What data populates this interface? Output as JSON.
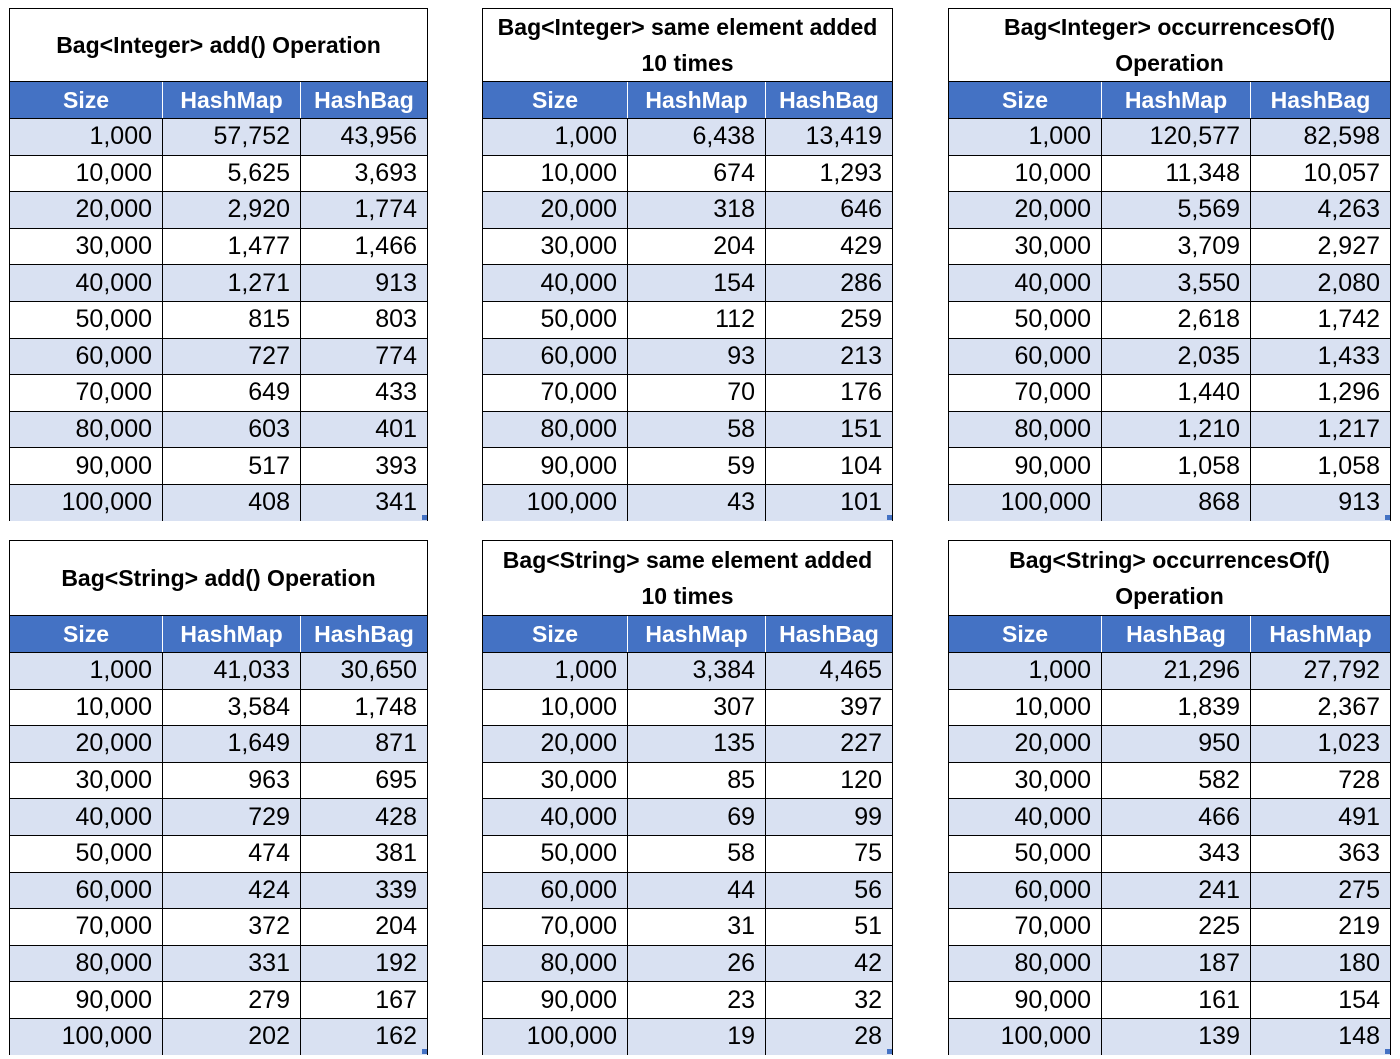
{
  "chart_data": [
    {
      "type": "table",
      "title": "Bag<Integer> add() Operation",
      "columns": [
        "Size",
        "HashMap",
        "HashBag"
      ],
      "rows": [
        [
          "1,000",
          "57,752",
          "43,956"
        ],
        [
          "10,000",
          "5,625",
          "3,693"
        ],
        [
          "20,000",
          "2,920",
          "1,774"
        ],
        [
          "30,000",
          "1,477",
          "1,466"
        ],
        [
          "40,000",
          "1,271",
          "913"
        ],
        [
          "50,000",
          "815",
          "803"
        ],
        [
          "60,000",
          "727",
          "774"
        ],
        [
          "70,000",
          "649",
          "433"
        ],
        [
          "80,000",
          "603",
          "401"
        ],
        [
          "90,000",
          "517",
          "393"
        ],
        [
          "100,000",
          "408",
          "341"
        ]
      ]
    },
    {
      "type": "table",
      "title": "Bag<Integer> same element added 10 times",
      "columns": [
        "Size",
        "HashMap",
        "HashBag"
      ],
      "rows": [
        [
          "1,000",
          "6,438",
          "13,419"
        ],
        [
          "10,000",
          "674",
          "1,293"
        ],
        [
          "20,000",
          "318",
          "646"
        ],
        [
          "30,000",
          "204",
          "429"
        ],
        [
          "40,000",
          "154",
          "286"
        ],
        [
          "50,000",
          "112",
          "259"
        ],
        [
          "60,000",
          "93",
          "213"
        ],
        [
          "70,000",
          "70",
          "176"
        ],
        [
          "80,000",
          "58",
          "151"
        ],
        [
          "90,000",
          "59",
          "104"
        ],
        [
          "100,000",
          "43",
          "101"
        ]
      ]
    },
    {
      "type": "table",
      "title": "Bag<Integer> occurrencesOf() Operation",
      "columns": [
        "Size",
        "HashMap",
        "HashBag"
      ],
      "rows": [
        [
          "1,000",
          "120,577",
          "82,598"
        ],
        [
          "10,000",
          "11,348",
          "10,057"
        ],
        [
          "20,000",
          "5,569",
          "4,263"
        ],
        [
          "30,000",
          "3,709",
          "2,927"
        ],
        [
          "40,000",
          "3,550",
          "2,080"
        ],
        [
          "50,000",
          "2,618",
          "1,742"
        ],
        [
          "60,000",
          "2,035",
          "1,433"
        ],
        [
          "70,000",
          "1,440",
          "1,296"
        ],
        [
          "80,000",
          "1,210",
          "1,217"
        ],
        [
          "90,000",
          "1,058",
          "1,058"
        ],
        [
          "100,000",
          "868",
          "913"
        ]
      ]
    },
    {
      "type": "table",
      "title": "Bag<String> add() Operation",
      "columns": [
        "Size",
        "HashMap",
        "HashBag"
      ],
      "rows": [
        [
          "1,000",
          "41,033",
          "30,650"
        ],
        [
          "10,000",
          "3,584",
          "1,748"
        ],
        [
          "20,000",
          "1,649",
          "871"
        ],
        [
          "30,000",
          "963",
          "695"
        ],
        [
          "40,000",
          "729",
          "428"
        ],
        [
          "50,000",
          "474",
          "381"
        ],
        [
          "60,000",
          "424",
          "339"
        ],
        [
          "70,000",
          "372",
          "204"
        ],
        [
          "80,000",
          "331",
          "192"
        ],
        [
          "90,000",
          "279",
          "167"
        ],
        [
          "100,000",
          "202",
          "162"
        ]
      ]
    },
    {
      "type": "table",
      "title": "Bag<String> same element added 10 times",
      "columns": [
        "Size",
        "HashMap",
        "HashBag"
      ],
      "rows": [
        [
          "1,000",
          "3,384",
          "4,465"
        ],
        [
          "10,000",
          "307",
          "397"
        ],
        [
          "20,000",
          "135",
          "227"
        ],
        [
          "30,000",
          "85",
          "120"
        ],
        [
          "40,000",
          "69",
          "99"
        ],
        [
          "50,000",
          "58",
          "75"
        ],
        [
          "60,000",
          "44",
          "56"
        ],
        [
          "70,000",
          "31",
          "51"
        ],
        [
          "80,000",
          "26",
          "42"
        ],
        [
          "90,000",
          "23",
          "32"
        ],
        [
          "100,000",
          "19",
          "28"
        ]
      ]
    },
    {
      "type": "table",
      "title": "Bag<String> occurrencesOf() Operation",
      "columns": [
        "Size",
        "HashBag",
        "HashMap"
      ],
      "rows": [
        [
          "1,000",
          "21,296",
          "27,792"
        ],
        [
          "10,000",
          "1,839",
          "2,367"
        ],
        [
          "20,000",
          "950",
          "1,023"
        ],
        [
          "30,000",
          "582",
          "728"
        ],
        [
          "40,000",
          "466",
          "491"
        ],
        [
          "50,000",
          "343",
          "363"
        ],
        [
          "60,000",
          "241",
          "275"
        ],
        [
          "70,000",
          "225",
          "219"
        ],
        [
          "80,000",
          "187",
          "180"
        ],
        [
          "90,000",
          "161",
          "154"
        ],
        [
          "100,000",
          "139",
          "148"
        ]
      ]
    }
  ],
  "colors": {
    "header_bg": "#4472c4",
    "header_text": "#ffffff",
    "band_row": "#d9e1f2",
    "plain_row": "#ffffff"
  }
}
